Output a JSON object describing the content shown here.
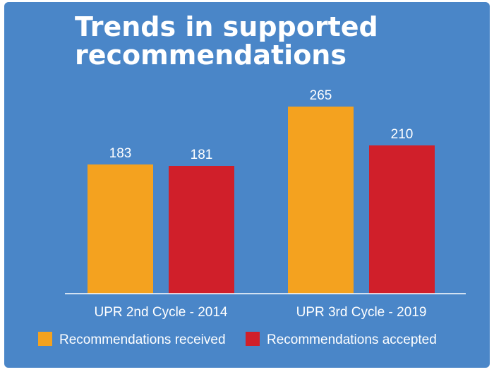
{
  "chart_data": {
    "type": "bar",
    "title": "Trends in supported recommendations",
    "title_lines": [
      "Trends in supported",
      "recommendations"
    ],
    "categories": [
      "UPR 2nd Cycle - 2014",
      "UPR 3rd Cycle - 2019"
    ],
    "series": [
      {
        "name": "Recommendations received",
        "values": [
          183,
          265
        ],
        "color": "#f4a21f"
      },
      {
        "name": "Recommendations accepted",
        "values": [
          181,
          210
        ],
        "color": "#d01f2a"
      }
    ],
    "xlabel": "",
    "ylabel": "",
    "ylim": [
      0,
      265
    ],
    "grid": false,
    "legend_position": "bottom-left",
    "background_color": "#4a86c8",
    "axis_color": "#ffffff"
  }
}
